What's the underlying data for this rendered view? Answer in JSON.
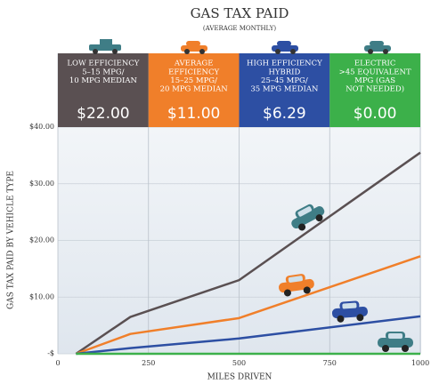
{
  "chart_data": {
    "type": "line",
    "title": "GAS TAX PAID",
    "subtitle": "(AVERAGE MONTHLY)",
    "xlabel": "MILES DRIVEN",
    "ylabel": "GAS TAX PAID BY VEHICLE TYPE",
    "xlim": [
      0,
      1000
    ],
    "xticks": [
      0,
      250,
      500,
      750,
      1000
    ],
    "ylim": [
      0,
      40
    ],
    "yticks": [
      {
        "value": 0,
        "label": "-$"
      },
      {
        "value": 10,
        "label": "$10.00"
      },
      {
        "value": 20,
        "label": "$20.00"
      },
      {
        "value": 30,
        "label": "$30.00"
      },
      {
        "value": 40,
        "label": "$40.00"
      }
    ],
    "grid": true,
    "series": [
      {
        "name": "LOW EFFICIENCY",
        "description": [
          "5–15 MPG/",
          "10 MPG MEDIAN"
        ],
        "amount": "$22.00",
        "color": "#5a5052",
        "x": [
          50,
          200,
          500,
          1000
        ],
        "y": [
          0,
          6.5,
          13,
          35.5
        ]
      },
      {
        "name": "AVERAGE",
        "description": [
          "EFFICIENCY",
          "15–25 MPG/",
          "20 MPG MEDIAN"
        ],
        "amount": "$11.00",
        "color": "#f07f2a",
        "x": [
          50,
          200,
          500,
          1000
        ],
        "y": [
          0,
          3.5,
          6.3,
          17.2
        ]
      },
      {
        "name": "HIGH EFFICIENCY",
        "description": [
          "HYBRID",
          "25–45 MPG/",
          "35 MPG MEDIAN"
        ],
        "amount": "$6.29",
        "color": "#2d4fa3",
        "x": [
          50,
          200,
          500,
          1000
        ],
        "y": [
          0,
          1,
          2.7,
          6.6
        ]
      },
      {
        "name": "ELECTRIC",
        "description": [
          ">45 EQUIVALENT",
          "MPG (GAS",
          "NOT NEEDED)"
        ],
        "amount": "$0.00",
        "color": "#3cb04a",
        "x": [
          50,
          1000
        ],
        "y": [
          0,
          0
        ]
      }
    ]
  }
}
